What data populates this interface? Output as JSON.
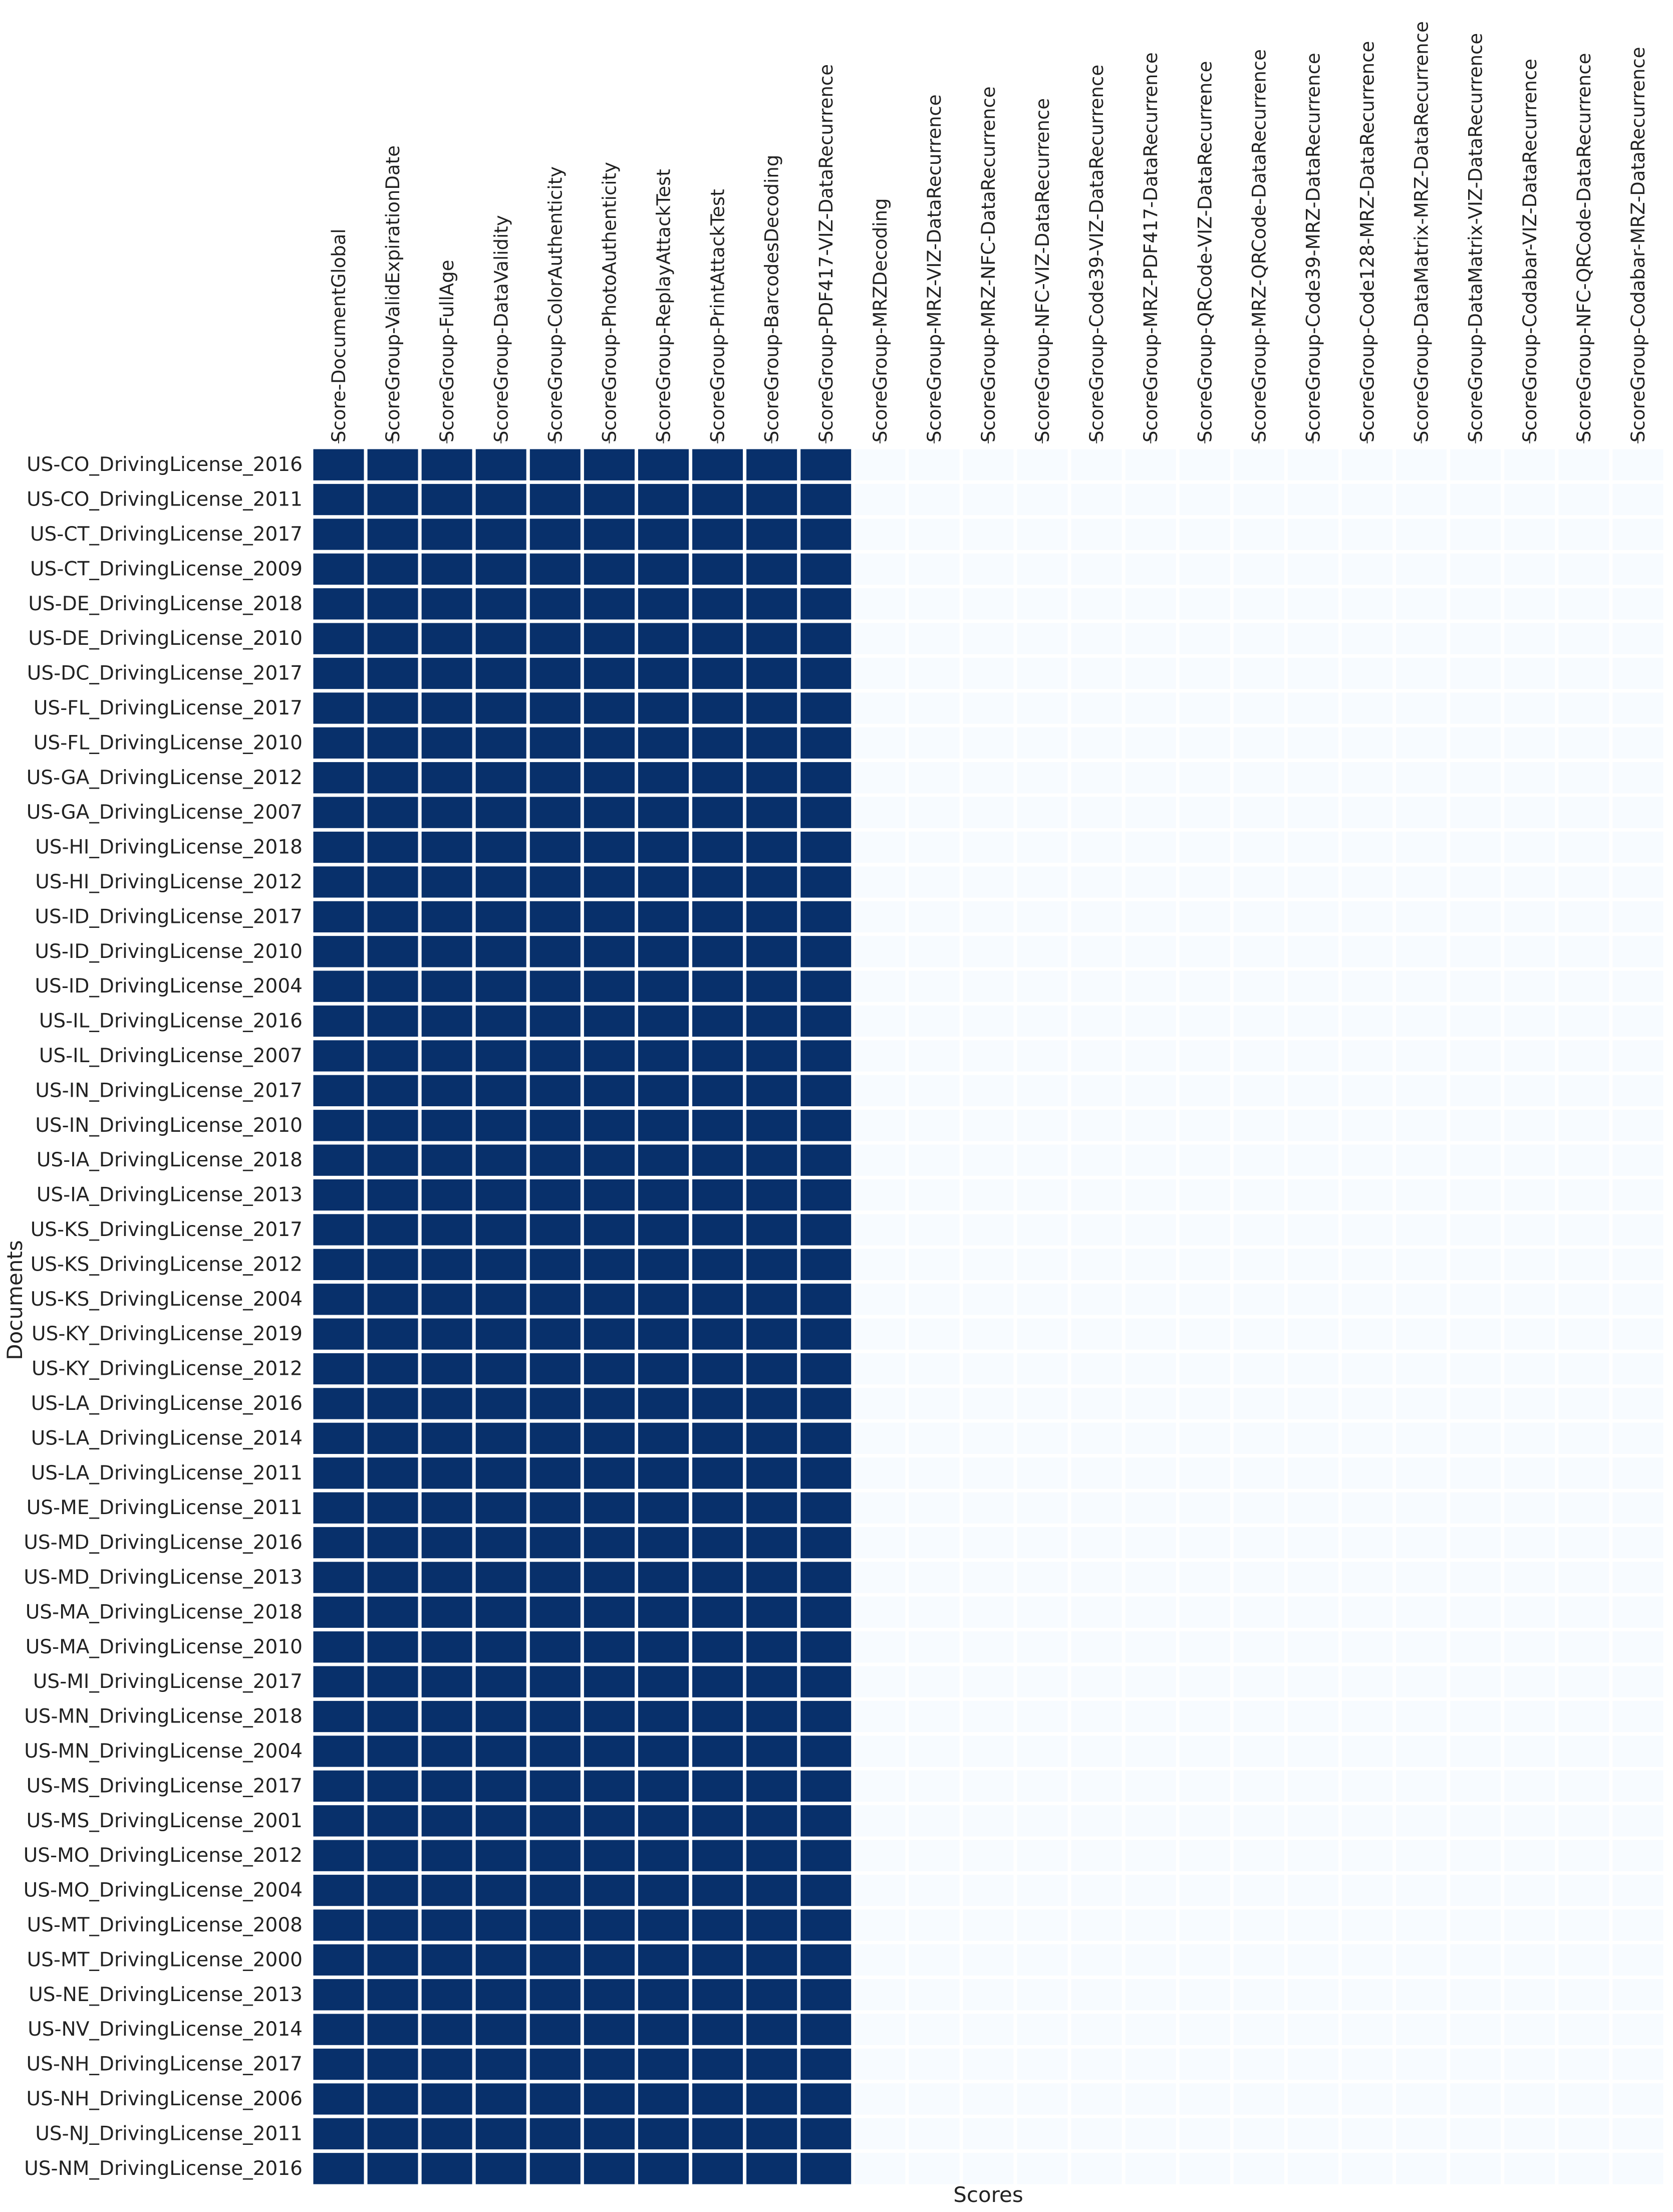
{
  "chart_data": {
    "type": "heatmap",
    "title": "",
    "xlabel": "Scores",
    "ylabel": "Documents",
    "colormap": {
      "low": "#f7fbff",
      "high": "#08306b"
    },
    "value_range": [
      0,
      1
    ],
    "grid": false,
    "legend": "none",
    "x_categories": [
      "Score-DocumentGlobal",
      "ScoreGroup-ValidExpirationDate",
      "ScoreGroup-FullAge",
      "ScoreGroup-DataValidity",
      "ScoreGroup-ColorAuthenticity",
      "ScoreGroup-PhotoAuthenticity",
      "ScoreGroup-ReplayAttackTest",
      "ScoreGroup-PrintAttackTest",
      "ScoreGroup-BarcodesDecoding",
      "ScoreGroup-PDF417-VIZ-DataRecurrence",
      "ScoreGroup-MRZDecoding",
      "ScoreGroup-MRZ-VIZ-DataRecurrence",
      "ScoreGroup-MRZ-NFC-DataRecurrence",
      "ScoreGroup-NFC-VIZ-DataRecurrence",
      "ScoreGroup-Code39-VIZ-DataRecurrence",
      "ScoreGroup-MRZ-PDF417-DataRecurrence",
      "ScoreGroup-QRCode-VIZ-DataRecurrence",
      "ScoreGroup-MRZ-QRCode-DataRecurrence",
      "ScoreGroup-Code39-MRZ-DataRecurrence",
      "ScoreGroup-Code128-MRZ-DataRecurrence",
      "ScoreGroup-DataMatrix-MRZ-DataRecurrence",
      "ScoreGroup-DataMatrix-VIZ-DataRecurrence",
      "ScoreGroup-Codabar-VIZ-DataRecurrence",
      "ScoreGroup-NFC-QRCode-DataRecurrence",
      "ScoreGroup-Codabar-MRZ-DataRecurrence"
    ],
    "y_categories": [
      "US-CO_DrivingLicense_2016",
      "US-CO_DrivingLicense_2011",
      "US-CT_DrivingLicense_2017",
      "US-CT_DrivingLicense_2009",
      "US-DE_DrivingLicense_2018",
      "US-DE_DrivingLicense_2010",
      "US-DC_DrivingLicense_2017",
      "US-FL_DrivingLicense_2017",
      "US-FL_DrivingLicense_2010",
      "US-GA_DrivingLicense_2012",
      "US-GA_DrivingLicense_2007",
      "US-HI_DrivingLicense_2018",
      "US-HI_DrivingLicense_2012",
      "US-ID_DrivingLicense_2017",
      "US-ID_DrivingLicense_2010",
      "US-ID_DrivingLicense_2004",
      "US-IL_DrivingLicense_2016",
      "US-IL_DrivingLicense_2007",
      "US-IN_DrivingLicense_2017",
      "US-IN_DrivingLicense_2010",
      "US-IA_DrivingLicense_2018",
      "US-IA_DrivingLicense_2013",
      "US-KS_DrivingLicense_2017",
      "US-KS_DrivingLicense_2012",
      "US-KS_DrivingLicense_2004",
      "US-KY_DrivingLicense_2019",
      "US-KY_DrivingLicense_2012",
      "US-LA_DrivingLicense_2016",
      "US-LA_DrivingLicense_2014",
      "US-LA_DrivingLicense_2011",
      "US-ME_DrivingLicense_2011",
      "US-MD_DrivingLicense_2016",
      "US-MD_DrivingLicense_2013",
      "US-MA_DrivingLicense_2018",
      "US-MA_DrivingLicense_2010",
      "US-MI_DrivingLicense_2017",
      "US-MN_DrivingLicense_2018",
      "US-MN_DrivingLicense_2004",
      "US-MS_DrivingLicense_2017",
      "US-MS_DrivingLicense_2001",
      "US-MO_DrivingLicense_2012",
      "US-MO_DrivingLicense_2004",
      "US-MT_DrivingLicense_2008",
      "US-MT_DrivingLicense_2000",
      "US-NE_DrivingLicense_2013",
      "US-NV_DrivingLicense_2014",
      "US-NH_DrivingLicense_2017",
      "US-NH_DrivingLicense_2006",
      "US-NJ_DrivingLicense_2011",
      "US-NM_DrivingLicense_2016"
    ],
    "row_values": [
      1,
      1,
      1,
      1,
      1,
      1,
      1,
      1,
      1,
      1,
      0,
      0,
      0,
      0,
      0,
      0,
      0,
      0,
      0,
      0,
      0,
      0,
      0,
      0,
      0
    ]
  }
}
